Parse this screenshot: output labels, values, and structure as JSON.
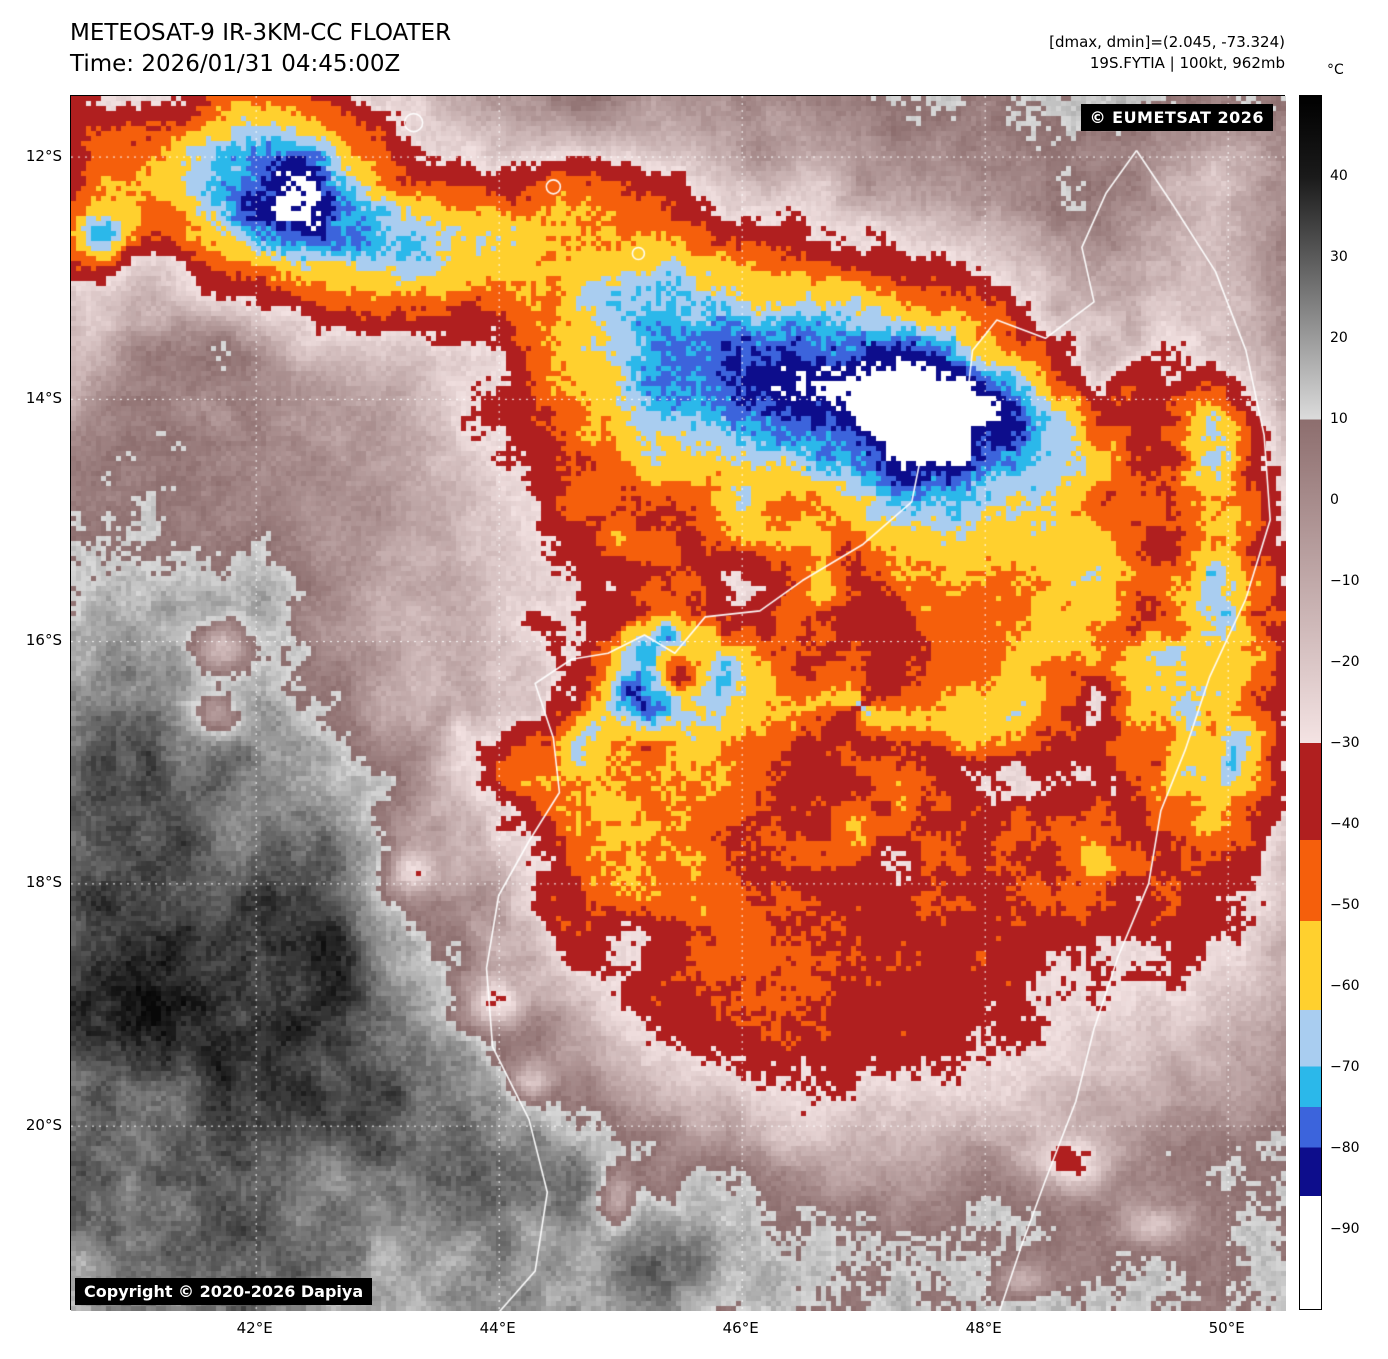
{
  "header": {
    "title": "METEOSAT-9 IR-3KM-CC FLOATER",
    "time_line": "Time: 2026/01/31 04:45:00Z",
    "dmax_dmin": "[dmax, dmin]=(2.045, -73.324)",
    "storm_info": "19S.FYTIA | 100kt, 962mb"
  },
  "map": {
    "eumetsat_credit": "© EUMETSAT 2026",
    "copyright": "Copyright © 2020-2026 Dapiya"
  },
  "axes": {
    "lon_extent": [
      40.48,
      50.48
    ],
    "lat_extent": [
      -11.5,
      -21.53
    ],
    "lat_ticks": [
      {
        "value": -12,
        "label": "12°S"
      },
      {
        "value": -14,
        "label": "14°S"
      },
      {
        "value": -16,
        "label": "16°S"
      },
      {
        "value": -18,
        "label": "18°S"
      },
      {
        "value": -20,
        "label": "20°S"
      }
    ],
    "lon_ticks": [
      {
        "value": 42,
        "label": "42°E"
      },
      {
        "value": 44,
        "label": "44°E"
      },
      {
        "value": 46,
        "label": "46°E"
      },
      {
        "value": 48,
        "label": "48°E"
      },
      {
        "value": 50,
        "label": "50°E"
      }
    ]
  },
  "colorbar": {
    "unit": "°C",
    "range": [
      50,
      -100
    ],
    "ticks": [
      {
        "value": 40,
        "label": "40"
      },
      {
        "value": 30,
        "label": "30"
      },
      {
        "value": 20,
        "label": "20"
      },
      {
        "value": 10,
        "label": "10"
      },
      {
        "value": 0,
        "label": "0"
      },
      {
        "value": -10,
        "label": "−10"
      },
      {
        "value": -20,
        "label": "−20"
      },
      {
        "value": -30,
        "label": "−30"
      },
      {
        "value": -40,
        "label": "−40"
      },
      {
        "value": -50,
        "label": "−50"
      },
      {
        "value": -60,
        "label": "−60"
      },
      {
        "value": -70,
        "label": "−70"
      },
      {
        "value": -80,
        "label": "−80"
      },
      {
        "value": -90,
        "label": "−90"
      }
    ],
    "gradient_stops": [
      {
        "v": 50,
        "c": "#000000"
      },
      {
        "v": 40,
        "c": "#1a1a1a"
      },
      {
        "v": 10,
        "c": "#dcdcdc"
      },
      {
        "v": 10,
        "c": "#8d6e6e"
      },
      {
        "v": -30,
        "c": "#f4e3e3"
      },
      {
        "v": -30,
        "c": "#b01f1f"
      },
      {
        "v": -42,
        "c": "#b01f1f"
      },
      {
        "v": -42,
        "c": "#f55f0c"
      },
      {
        "v": -52,
        "c": "#f55f0c"
      },
      {
        "v": -52,
        "c": "#ffd02e"
      },
      {
        "v": -63,
        "c": "#ffd02e"
      },
      {
        "v": -63,
        "c": "#a9cdf0"
      },
      {
        "v": -70,
        "c": "#a9cdf0"
      },
      {
        "v": -70,
        "c": "#2bb8ea"
      },
      {
        "v": -75,
        "c": "#2bb8ea"
      },
      {
        "v": -75,
        "c": "#3c64dc"
      },
      {
        "v": -80,
        "c": "#3c64dc"
      },
      {
        "v": -80,
        "c": "#0d0d8c"
      },
      {
        "v": -86,
        "c": "#0d0d8c"
      },
      {
        "v": -86,
        "c": "#ffffff"
      },
      {
        "v": -100,
        "c": "#ffffff"
      }
    ],
    "ir_classes": [
      {
        "max": -86,
        "color": "#ffffff"
      },
      {
        "max": -80,
        "color": "#0d0d8c"
      },
      {
        "max": -75,
        "color": "#3c64dc"
      },
      {
        "max": -70,
        "color": "#2bb8ea"
      },
      {
        "max": -63,
        "color": "#a9cdf0"
      },
      {
        "max": -52,
        "color": "#ffd02e"
      },
      {
        "max": -42,
        "color": "#f55f0c"
      },
      {
        "max": -30,
        "color": "#b01f1f"
      }
    ]
  },
  "cyclone": {
    "eye_lon": 45.48,
    "eye_lat": -16.3
  },
  "coastlines": {
    "west": [
      [
        49.25,
        -11.95
      ],
      [
        49.0,
        -12.3
      ],
      [
        48.8,
        -12.75
      ],
      [
        48.9,
        -13.2
      ],
      [
        48.5,
        -13.5
      ],
      [
        48.1,
        -13.35
      ],
      [
        47.9,
        -13.6
      ],
      [
        47.85,
        -14.05
      ],
      [
        47.5,
        -14.35
      ],
      [
        47.4,
        -14.85
      ],
      [
        47.0,
        -15.2
      ],
      [
        46.5,
        -15.5
      ],
      [
        46.15,
        -15.75
      ],
      [
        45.7,
        -15.8
      ],
      [
        45.45,
        -16.1
      ],
      [
        45.2,
        -15.95
      ],
      [
        44.9,
        -16.1
      ],
      [
        44.6,
        -16.15
      ],
      [
        44.3,
        -16.35
      ],
      [
        44.45,
        -16.8
      ],
      [
        44.5,
        -17.25
      ],
      [
        44.25,
        -17.65
      ],
      [
        44.0,
        -18.1
      ],
      [
        43.9,
        -18.7
      ],
      [
        43.95,
        -19.35
      ],
      [
        44.25,
        -19.95
      ],
      [
        44.4,
        -20.55
      ],
      [
        44.3,
        -21.2
      ],
      [
        43.95,
        -21.6
      ]
    ],
    "east": [
      [
        49.25,
        -11.95
      ],
      [
        49.55,
        -12.4
      ],
      [
        49.9,
        -12.95
      ],
      [
        50.15,
        -13.6
      ],
      [
        50.3,
        -14.3
      ],
      [
        50.35,
        -15.0
      ],
      [
        50.15,
        -15.65
      ],
      [
        49.85,
        -16.3
      ],
      [
        49.65,
        -16.9
      ],
      [
        49.45,
        -17.4
      ],
      [
        49.35,
        -18.0
      ],
      [
        49.1,
        -18.6
      ],
      [
        48.9,
        -19.2
      ],
      [
        48.75,
        -19.8
      ],
      [
        48.5,
        -20.45
      ],
      [
        48.3,
        -21.0
      ],
      [
        48.1,
        -21.6
      ]
    ],
    "islands": [
      {
        "lon": 43.3,
        "lat": -11.72,
        "r": 9
      },
      {
        "lon": 44.45,
        "lat": -12.25,
        "r": 7
      },
      {
        "lon": 45.15,
        "lat": -12.8,
        "r": 6
      }
    ]
  }
}
